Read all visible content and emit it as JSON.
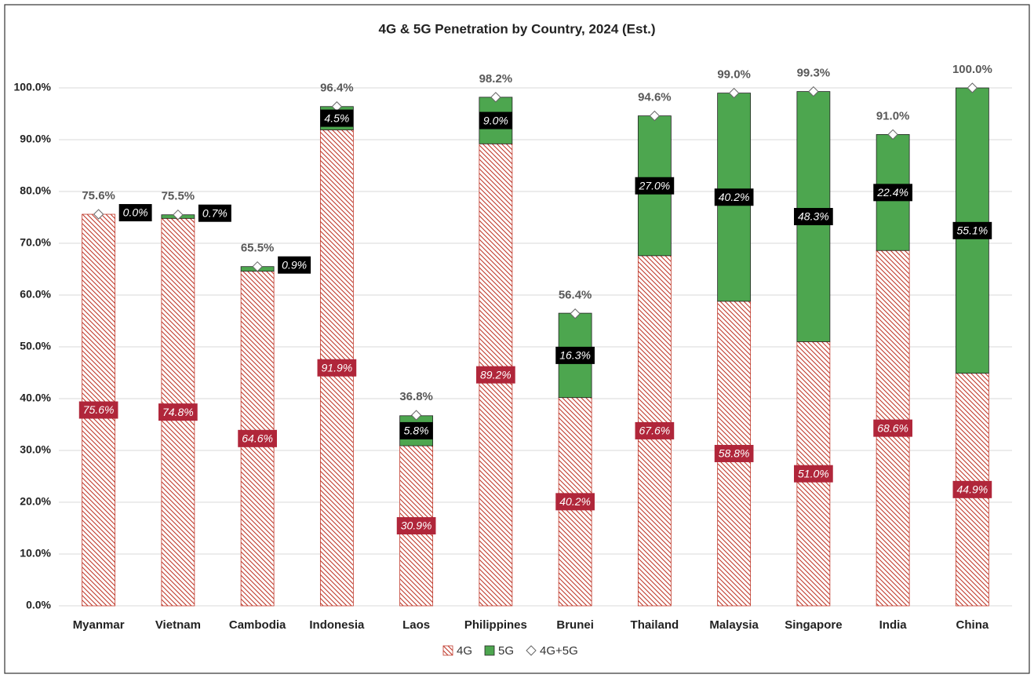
{
  "chart_data": {
    "type": "bar",
    "stacked": true,
    "title": "4G & 5G Penetration by Country, 2024 (Est.)",
    "categories": [
      "Myanmar",
      "Vietnam",
      "Cambodia",
      "Indonesia",
      "Laos",
      "Philippines",
      "Brunei",
      "Thailand",
      "Malaysia",
      "Singapore",
      "India",
      "China"
    ],
    "series": [
      {
        "name": "4G",
        "type": "bar",
        "pattern": "hatch",
        "color": "#c0392b",
        "values": [
          75.6,
          74.8,
          64.6,
          91.9,
          30.9,
          89.2,
          40.2,
          67.6,
          58.8,
          51.0,
          68.6,
          44.9
        ],
        "value_labels": [
          "75.6%",
          "74.8%",
          "64.6%",
          "91.9%",
          "30.9%",
          "89.2%",
          "40.2%",
          "67.6%",
          "58.8%",
          "51.0%",
          "68.6%",
          "44.9%"
        ]
      },
      {
        "name": "5G",
        "type": "bar",
        "color": "#4da64f",
        "values": [
          0.0,
          0.7,
          0.9,
          4.5,
          5.8,
          9.0,
          16.3,
          27.0,
          40.2,
          48.3,
          22.4,
          55.1
        ],
        "value_labels": [
          "0.0%",
          "0.7%",
          "0.9%",
          "4.5%",
          "5.8%",
          "9.0%",
          "16.3%",
          "27.0%",
          "40.2%",
          "48.3%",
          "22.4%",
          "55.1%"
        ]
      },
      {
        "name": "4G+5G",
        "type": "marker",
        "color": "#ffffff",
        "values": [
          75.6,
          75.5,
          65.5,
          96.4,
          36.8,
          98.2,
          56.4,
          94.6,
          99.0,
          99.3,
          91.0,
          100.0
        ],
        "value_labels": [
          "75.6%",
          "75.5%",
          "65.5%",
          "96.4%",
          "36.8%",
          "98.2%",
          "56.4%",
          "94.6%",
          "99.0%",
          "99.3%",
          "91.0%",
          "100.0%"
        ]
      }
    ],
    "ylim": [
      0,
      100
    ],
    "yticks": [
      {
        "value": 0,
        "label": "0.0%"
      },
      {
        "value": 10,
        "label": "10.0%"
      },
      {
        "value": 20,
        "label": "20.0%"
      },
      {
        "value": 30,
        "label": "30.0%"
      },
      {
        "value": 40,
        "label": "40.0%"
      },
      {
        "value": 50,
        "label": "50.0%"
      },
      {
        "value": 60,
        "label": "60.0%"
      },
      {
        "value": 70,
        "label": "70.0%"
      },
      {
        "value": 80,
        "label": "80.0%"
      },
      {
        "value": 90,
        "label": "90.0%"
      },
      {
        "value": 100,
        "label": "100.0%"
      }
    ],
    "grid": true,
    "legend": "bottom"
  }
}
